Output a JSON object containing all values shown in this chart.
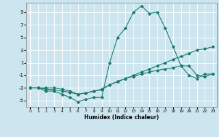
{
  "xlabel": "Humidex (Indice chaleur)",
  "ylabel": "",
  "background_color": "#cce5ee",
  "line_color": "#1a7a6e",
  "grid_color": "#ffffff",
  "xlim": [
    -0.5,
    23.5
  ],
  "ylim": [
    -6,
    10.5
  ],
  "xticks": [
    0,
    1,
    2,
    3,
    4,
    5,
    6,
    7,
    8,
    9,
    10,
    11,
    12,
    13,
    14,
    15,
    16,
    17,
    18,
    19,
    20,
    21,
    22,
    23
  ],
  "yticks": [
    -5,
    -3,
    -1,
    1,
    3,
    5,
    7,
    9
  ],
  "series": [
    {
      "x": [
        0,
        1,
        2,
        3,
        4,
        5,
        6,
        7,
        8,
        9,
        10,
        11,
        12,
        13,
        14,
        15,
        16,
        17,
        18,
        19,
        20,
        21,
        22,
        23
      ],
      "y": [
        -3,
        -3,
        -3.5,
        -3.5,
        -4,
        -4.5,
        -5.2,
        -4.8,
        -4.5,
        -4.5,
        1,
        5,
        6.5,
        9,
        10,
        8.8,
        9,
        6.5,
        3.5,
        0.5,
        -1,
        -1.5,
        -0.8,
        -0.8
      ]
    },
    {
      "x": [
        0,
        1,
        2,
        3,
        4,
        5,
        6,
        7,
        8,
        9,
        10,
        11,
        12,
        13,
        14,
        15,
        16,
        17,
        18,
        19,
        20,
        21,
        22,
        23
      ],
      "y": [
        -3,
        -3,
        -3.2,
        -3.3,
        -3.5,
        -3.7,
        -4,
        -3.8,
        -3.5,
        -3.3,
        -2.5,
        -2,
        -1.5,
        -1,
        -0.5,
        0,
        0.5,
        1,
        1.5,
        2,
        2.5,
        3,
        3.2,
        3.5
      ]
    },
    {
      "x": [
        0,
        1,
        2,
        3,
        4,
        5,
        6,
        7,
        8,
        9,
        10,
        11,
        12,
        13,
        14,
        15,
        16,
        17,
        18,
        19,
        20,
        21,
        22,
        23
      ],
      "y": [
        -3,
        -3,
        -3,
        -3,
        -3.2,
        -3.5,
        -4,
        -3.8,
        -3.5,
        -3.2,
        -2.5,
        -2,
        -1.5,
        -1.2,
        -0.8,
        -0.5,
        -0.2,
        0,
        0.2,
        0.5,
        0.5,
        -1,
        -1.2,
        -0.8
      ]
    }
  ]
}
